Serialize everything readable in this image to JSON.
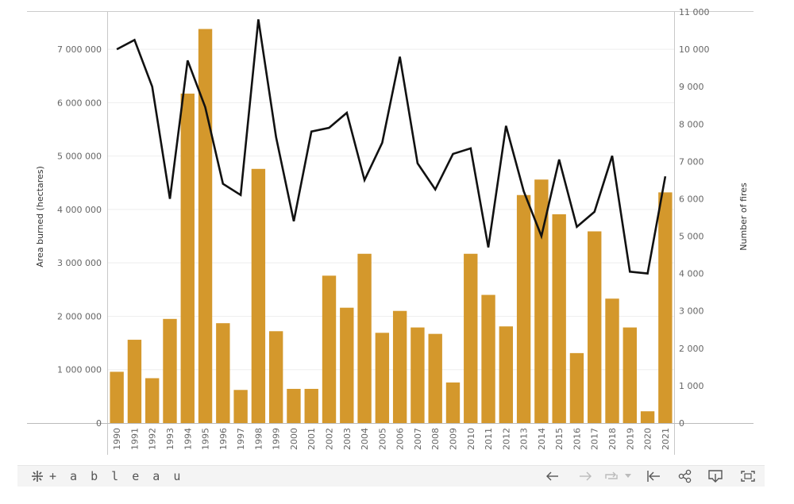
{
  "chart_data": {
    "type": "bar+line",
    "categories": [
      "1990",
      "1991",
      "1992",
      "1993",
      "1994",
      "1995",
      "1996",
      "1997",
      "1998",
      "1999",
      "2000",
      "2001",
      "2002",
      "2003",
      "2004",
      "2005",
      "2006",
      "2007",
      "2008",
      "2009",
      "2010",
      "2011",
      "2012",
      "2013",
      "2014",
      "2015",
      "2016",
      "2017",
      "2018",
      "2019",
      "2020",
      "2021"
    ],
    "series": [
      {
        "type": "bar",
        "axis": "left",
        "color": "#D4982C",
        "values": [
          960000,
          1560000,
          840000,
          1950000,
          6170000,
          7380000,
          1870000,
          620000,
          4760000,
          1720000,
          640000,
          640000,
          2760000,
          2160000,
          3170000,
          1690000,
          2100000,
          1790000,
          1670000,
          760000,
          3170000,
          2400000,
          1810000,
          4270000,
          4560000,
          3910000,
          1310000,
          3590000,
          2330000,
          1790000,
          220000,
          4320000
        ]
      },
      {
        "type": "line",
        "axis": "right",
        "color": "#111111",
        "values": [
          10000,
          10250,
          9000,
          6000,
          9700,
          8450,
          6400,
          6100,
          10800,
          7650,
          5400,
          7800,
          7900,
          8300,
          6500,
          7500,
          9800,
          6950,
          6250,
          7200,
          7350,
          4700,
          7950,
          6200,
          5000,
          7050,
          5250,
          5650,
          7150,
          4050,
          4000,
          6600
        ]
      }
    ],
    "y_left": {
      "label": "Area burned (hectares)",
      "range": [
        0,
        7700000
      ],
      "ticks": [
        0,
        1000000,
        2000000,
        3000000,
        4000000,
        5000000,
        6000000,
        7000000
      ],
      "tick_labels": [
        "0",
        "1 000 000",
        "2 000 000",
        "3 000 000",
        "4 000 000",
        "5 000 000",
        "6 000 000",
        "7 000 000"
      ]
    },
    "y_right": {
      "label": "Number of fires",
      "range": [
        0,
        11000
      ],
      "ticks": [
        0,
        1000,
        2000,
        3000,
        4000,
        5000,
        6000,
        7000,
        8000,
        9000,
        10000,
        11000
      ],
      "tick_labels": [
        "0",
        "1 000",
        "2 000",
        "3 000",
        "4 000",
        "5 000",
        "6 000",
        "7 000",
        "8 000",
        "9 000",
        "10 000",
        "11 000"
      ]
    },
    "grid": true
  },
  "toolbar": {
    "logo_text": "+ a b l e a u",
    "icons": [
      "undo-icon",
      "redo-icon",
      "revert-icon",
      "revert-dropdown-icon",
      "reset-icon",
      "share-icon",
      "download-icon",
      "fullscreen-icon"
    ]
  }
}
